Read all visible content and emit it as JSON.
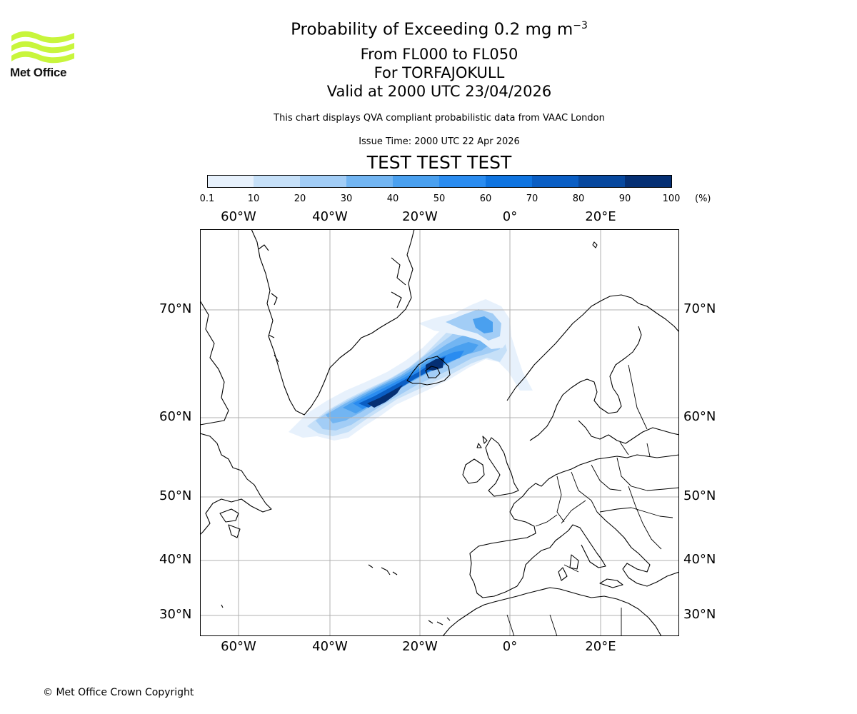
{
  "logo": {
    "text": "Met Office",
    "colors": {
      "waves": "#c8f53c",
      "text": "#111111"
    }
  },
  "header": {
    "title_main": "Probability of Exceeding 0.2 mg m",
    "title_exponent": "−3",
    "level": "From FL000 to FL050",
    "volcano": "For TORFAJOKULL",
    "valid": "Valid at 2000 UTC 23/04/2026",
    "note": "This chart displays QVA compliant probabilistic data from VAAC London",
    "issue_time": "Issue Time: 2000 UTC 22 Apr 2026",
    "test_banner": "TEST TEST TEST",
    "test_color": "#dd0000"
  },
  "colorbar": {
    "unit": "(%)",
    "ticks": [
      "0.1",
      "10",
      "20",
      "30",
      "40",
      "50",
      "60",
      "70",
      "80",
      "90",
      "100"
    ],
    "colors": [
      "#e7f1fc",
      "#c6e0f8",
      "#a2cdf6",
      "#72b5f2",
      "#4aa0ef",
      "#2a8cf0",
      "#0f74e0",
      "#0a5ec4",
      "#07489e",
      "#052f73"
    ]
  },
  "map": {
    "longitude_labels": [
      "60°W",
      "40°W",
      "20°W",
      "0°",
      "20°E"
    ],
    "latitude_labels": [
      "70°N",
      "60°N",
      "50°N",
      "40°N",
      "30°N"
    ],
    "grid": true,
    "projection": "polar-stereographic",
    "plume_fill_levels": [
      0.05,
      0.15,
      0.3,
      0.5,
      0.7,
      0.9
    ]
  },
  "footer": {
    "copyright": "© Met Office Crown Copyright"
  }
}
